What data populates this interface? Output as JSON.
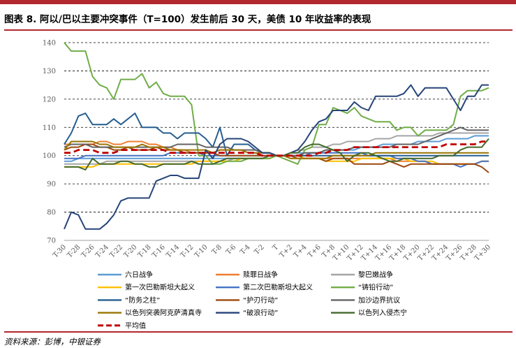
{
  "figure": {
    "title": "图表 8. 阿以/巴以主要冲突事件（T=100）发生前后 30 天，美债 10 年收益率的表现",
    "source": "资料来源：彭博，中银证券"
  },
  "colors": {
    "accent": "#b3272e"
  },
  "chart_data": {
    "type": "line",
    "ylim": [
      70,
      140
    ],
    "yticks": [
      "70",
      "80",
      "90",
      "100",
      "110",
      "120",
      "130",
      "140"
    ],
    "x": [
      "T-30",
      "T-29",
      "T-28",
      "T-27",
      "T-26",
      "T-25",
      "T-24",
      "T-23",
      "T-22",
      "T-21",
      "T-20",
      "T-19",
      "T-18",
      "T-17",
      "T-16",
      "T-15",
      "T-14",
      "T-13",
      "T-12",
      "T-11",
      "T-10",
      "T-9",
      "T-8",
      "T-7",
      "T-6",
      "T-5",
      "T-4",
      "T-3",
      "T-2",
      "T-1",
      "T",
      "T+1",
      "T+2",
      "T+3",
      "T+4",
      "T+5",
      "T+6",
      "T+7",
      "T+8",
      "T+9",
      "T+10",
      "T+11",
      "T+12",
      "T+13",
      "T+14",
      "T+15",
      "T+16",
      "T+17",
      "T+18",
      "T+19",
      "T+20",
      "T+21",
      "T+22",
      "T+23",
      "T+24",
      "T+25",
      "T+26",
      "T+27",
      "T+28",
      "T+29",
      "T+30"
    ],
    "xtick_labels": [
      "T-30",
      "T-28",
      "T-26",
      "T-24",
      "T-22",
      "T-20",
      "T-18",
      "T-16",
      "T-14",
      "T-12",
      "T-10",
      "T-8",
      "T-6",
      "T-4",
      "T-2",
      "T",
      "T+2",
      "T+4",
      "T+6",
      "T+8",
      "T+10",
      "T+12",
      "T+14",
      "T+16",
      "T+18",
      "T+20",
      "T+22",
      "T+24",
      "T+26",
      "T+28",
      "T+30"
    ],
    "legend_position": "bottom",
    "grid": "horizontal dashed",
    "series": [
      {
        "name": "六日战争",
        "color": "#5b9bd5",
        "dash": false,
        "values": [
          98,
          98,
          99,
          99,
          99,
          99,
          99,
          99,
          99,
          99,
          99,
          99,
          99,
          99,
          99,
          99,
          99,
          99,
          99,
          99,
          99,
          99,
          99,
          99,
          99,
          99,
          99,
          99,
          99,
          99,
          100,
          100,
          101,
          101,
          101,
          101,
          101,
          102,
          102,
          102,
          102,
          102,
          103,
          103,
          103,
          104,
          104,
          104,
          104,
          104,
          105,
          105,
          105,
          105,
          106,
          106,
          106,
          106,
          107,
          107,
          107
        ]
      },
      {
        "name": "赎罪日战争",
        "color": "#ed7d31",
        "dash": false,
        "values": [
          104,
          104,
          104,
          104,
          104,
          105,
          105,
          104,
          104,
          105,
          105,
          105,
          104,
          104,
          103,
          103,
          102,
          102,
          101,
          101,
          101,
          101,
          102,
          102,
          102,
          102,
          101,
          101,
          100,
          100,
          100,
          100,
          99,
          99,
          99,
          99,
          99,
          99,
          99,
          99,
          99,
          99,
          99,
          99,
          99,
          99,
          99,
          98,
          98,
          98,
          98,
          98,
          97,
          97,
          97,
          97,
          97,
          97,
          97,
          98,
          98
        ]
      },
      {
        "name": "黎巴嫩战争",
        "color": "#a5a5a5",
        "dash": false,
        "values": [
          97,
          97,
          97,
          97,
          97,
          97,
          98,
          98,
          98,
          98,
          98,
          98,
          98,
          98,
          98,
          98,
          98,
          98,
          98,
          98,
          98,
          98,
          98,
          98,
          99,
          99,
          99,
          99,
          99,
          99,
          100,
          100,
          101,
          102,
          102,
          103,
          103,
          103,
          104,
          104,
          105,
          105,
          105,
          105,
          106,
          106,
          106,
          107,
          107,
          107,
          107,
          107,
          107,
          108,
          108,
          108,
          108,
          108,
          108,
          108,
          108
        ]
      },
      {
        "name": "第一次巴勒斯坦大起义",
        "color": "#ffc000",
        "dash": false,
        "values": [
          96,
          96,
          96,
          96,
          96,
          97,
          97,
          97,
          97,
          97,
          97,
          97,
          97,
          97,
          97,
          97,
          97,
          97,
          97,
          98,
          98,
          98,
          98,
          98,
          98,
          99,
          99,
          99,
          99,
          99,
          100,
          100,
          100,
          100,
          99,
          99,
          99,
          98,
          98,
          98,
          98,
          98,
          99,
          99,
          99,
          99,
          99,
          99,
          99,
          98,
          98,
          98,
          98,
          97,
          97,
          97,
          97,
          97,
          97,
          98,
          98
        ]
      },
      {
        "name": "第二次巴勒斯坦大起义",
        "color": "#4472c4",
        "dash": false,
        "values": [
          99,
          99,
          99,
          100,
          100,
          100,
          100,
          100,
          100,
          100,
          100,
          100,
          100,
          100,
          100,
          101,
          101,
          101,
          101,
          101,
          100,
          100,
          100,
          100,
          100,
          100,
          100,
          100,
          100,
          100,
          100,
          100,
          100,
          100,
          100,
          101,
          101,
          101,
          101,
          101,
          101,
          101,
          101,
          100,
          100,
          100,
          100,
          99,
          99,
          99,
          98,
          98,
          97,
          97,
          97,
          97,
          96,
          97,
          97,
          98,
          98
        ]
      },
      {
        "name": "“铸铅行动”",
        "color": "#70ad47",
        "dash": false,
        "values": [
          140,
          137,
          137,
          137,
          128,
          125,
          124,
          120,
          127,
          127,
          127,
          129,
          124,
          126,
          122,
          121,
          121,
          121,
          118,
          100,
          100,
          97,
          97,
          98,
          98,
          98,
          99,
          99,
          99,
          99,
          100,
          99,
          98,
          97,
          102,
          103,
          111,
          111,
          117,
          116,
          115,
          117,
          114,
          113,
          112,
          112,
          112,
          109,
          110,
          110,
          107,
          109,
          109,
          109,
          109,
          111,
          121,
          123,
          123,
          123,
          124
        ]
      },
      {
        "name": "“防务之柱”",
        "color": "#255e91",
        "dash": false,
        "values": [
          104,
          108,
          114,
          115,
          111,
          111,
          111,
          113,
          111,
          113,
          115,
          110,
          110,
          110,
          108,
          108,
          106,
          108,
          108,
          108,
          106,
          103,
          110,
          100,
          104,
          104,
          104,
          102,
          101,
          101,
          100,
          100,
          100,
          100,
          100,
          100,
          100,
          100,
          100,
          100,
          100,
          100,
          100,
          100,
          100,
          100,
          100,
          100,
          100,
          100,
          100,
          100,
          100,
          100,
          100,
          100,
          100,
          100,
          100,
          100,
          100
        ]
      },
      {
        "name": "“护刃行动”",
        "color": "#9e480e",
        "dash": false,
        "values": [
          102,
          103,
          103,
          104,
          104,
          103,
          103,
          102,
          102,
          103,
          102,
          102,
          102,
          103,
          102,
          102,
          102,
          101,
          101,
          101,
          101,
          101,
          100,
          100,
          100,
          100,
          100,
          100,
          100,
          100,
          100,
          100,
          100,
          99,
          99,
          99,
          99,
          98,
          99,
          99,
          99,
          97,
          97,
          97,
          97,
          97,
          98,
          97,
          96,
          97,
          97,
          97,
          97,
          97,
          97,
          97,
          97,
          97,
          97,
          96,
          94
        ]
      },
      {
        "name": "加沙边界抗议",
        "color": "#636363",
        "dash": false,
        "values": [
          103,
          104,
          104,
          104,
          103,
          103,
          103,
          103,
          103,
          103,
          103,
          103,
          103,
          103,
          103,
          103,
          104,
          104,
          104,
          104,
          103,
          103,
          103,
          103,
          102,
          102,
          102,
          102,
          101,
          101,
          100,
          100,
          100,
          100,
          101,
          101,
          101,
          102,
          102,
          102,
          102,
          103,
          103,
          103,
          103,
          103,
          103,
          104,
          104,
          104,
          104,
          105,
          106,
          107,
          108,
          109,
          110,
          109,
          109,
          109,
          109
        ]
      },
      {
        "name": "以色列突袭阿克萨清真寺",
        "color": "#997300",
        "dash": false,
        "values": [
          102,
          105,
          105,
          105,
          105,
          104,
          104,
          103,
          103,
          103,
          103,
          104,
          103,
          103,
          103,
          102,
          102,
          102,
          102,
          102,
          102,
          101,
          102,
          102,
          102,
          102,
          101,
          101,
          101,
          101,
          100,
          100,
          99,
          99,
          99,
          99,
          99,
          99,
          100,
          100,
          100,
          100,
          100,
          100,
          101,
          101,
          101,
          101,
          101,
          101,
          101,
          101,
          101,
          101,
          101,
          101,
          101,
          101,
          101,
          101,
          101
        ]
      },
      {
        "name": "“破浪行动”",
        "color": "#264478",
        "dash": false,
        "values": [
          74,
          80,
          79,
          74,
          74,
          74,
          76,
          79,
          84,
          85,
          85,
          85,
          85,
          91,
          92,
          93,
          93,
          92,
          92,
          92,
          102,
          99,
          104,
          106,
          106,
          106,
          105,
          103,
          101,
          101,
          100,
          100,
          101,
          102,
          105,
          109,
          112,
          113,
          116,
          116,
          116,
          119,
          117,
          116,
          121,
          121,
          121,
          121,
          122,
          125,
          121,
          124,
          124,
          124,
          124,
          120,
          116,
          121,
          121,
          125,
          125
        ]
      },
      {
        "name": "以色列入侵杰宁",
        "color": "#43682b",
        "dash": false,
        "values": [
          96,
          96,
          96,
          95,
          99,
          97,
          97,
          97,
          98,
          98,
          97,
          97,
          96,
          96,
          97,
          97,
          97,
          97,
          98,
          97,
          97,
          97,
          98,
          99,
          99,
          99,
          99,
          99,
          99,
          100,
          100,
          100,
          101,
          101,
          103,
          104,
          104,
          103,
          102,
          101,
          98,
          100,
          101,
          101,
          100,
          99,
          98,
          98,
          99,
          99,
          99,
          99,
          99,
          100,
          100,
          100,
          102,
          103,
          103,
          103,
          106
        ]
      },
      {
        "name": "平均值",
        "color": "#c00000",
        "dash": true,
        "values": [
          101,
          101,
          102,
          102,
          102,
          101,
          101,
          101,
          102,
          102,
          102,
          102,
          102,
          102,
          102,
          101,
          101,
          101,
          101,
          101,
          101,
          101,
          101,
          101,
          101,
          101,
          101,
          101,
          100,
          100,
          100,
          100,
          100,
          100,
          100,
          100,
          101,
          101,
          102,
          102,
          102,
          103,
          103,
          103,
          103,
          103,
          103,
          103,
          103,
          103,
          103,
          103,
          103,
          103,
          104,
          104,
          104,
          104,
          104,
          105,
          105
        ]
      }
    ]
  }
}
